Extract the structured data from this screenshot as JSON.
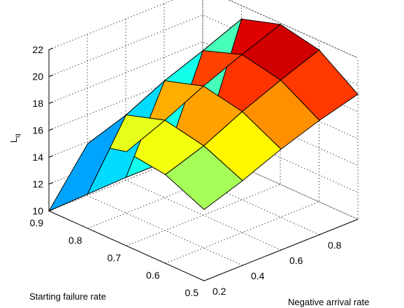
{
  "chart_data": {
    "type": "surface",
    "title": "",
    "xlabel": "Negative arrival rate",
    "ylabel": "Starting failure rate",
    "zlabel": "L",
    "zlabel_subscript": "q",
    "x": [
      0.2,
      0.4,
      0.6,
      0.8,
      1.0
    ],
    "y": [
      0.9,
      0.8,
      0.7,
      0.6,
      0.5
    ],
    "z": [
      [
        10.0,
        10.1,
        10.2,
        10.2,
        10.3
      ],
      [
        16.3,
        17.3,
        18.7,
        19.8,
        21.0
      ],
      [
        17.0,
        18.2,
        19.6,
        20.8,
        21.9
      ],
      [
        16.6,
        17.6,
        19.0,
        20.2,
        21.3
      ],
      [
        15.3,
        16.3,
        17.5,
        18.5,
        19.3
      ]
    ],
    "x_ticks": [
      "0.2",
      "0.4",
      "0.6",
      "0.8"
    ],
    "y_ticks": [
      "0.9",
      "0.8",
      "0.7",
      "0.6",
      "0.5"
    ],
    "z_ticks": [
      "10",
      "12",
      "14",
      "16",
      "18",
      "20",
      "22"
    ],
    "zlim": [
      10,
      22
    ],
    "colormap": "jet",
    "grid": true
  }
}
